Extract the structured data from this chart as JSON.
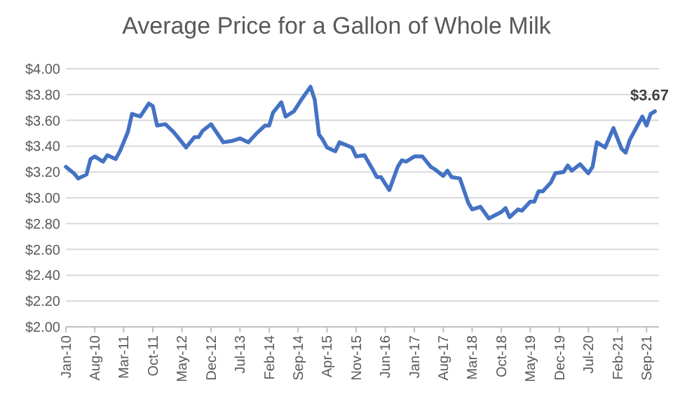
{
  "chart_data": {
    "type": "line",
    "title": "Average Price for a Gallon of Whole Milk",
    "x": [
      "2010-01",
      "2010-03",
      "2010-04",
      "2010-06",
      "2010-07",
      "2010-08",
      "2010-10",
      "2010-11",
      "2011-01",
      "2011-02",
      "2011-04",
      "2011-05",
      "2011-07",
      "2011-09",
      "2011-10",
      "2011-11",
      "2012-01",
      "2012-03",
      "2012-04",
      "2012-06",
      "2012-08",
      "2012-09",
      "2012-10",
      "2012-12",
      "2013-03",
      "2013-05",
      "2013-07",
      "2013-09",
      "2013-11",
      "2014-01",
      "2014-02",
      "2014-03",
      "2014-05",
      "2014-06",
      "2014-08",
      "2014-10",
      "2014-12",
      "2015-01",
      "2015-02",
      "2015-03",
      "2015-04",
      "2015-06",
      "2015-07",
      "2015-10",
      "2015-11",
      "2016-01",
      "2016-03",
      "2016-04",
      "2016-05",
      "2016-07",
      "2016-09",
      "2016-10",
      "2016-11",
      "2017-01",
      "2017-03",
      "2017-05",
      "2017-06",
      "2017-08",
      "2017-09",
      "2017-10",
      "2017-12",
      "2018-02",
      "2018-03",
      "2018-05",
      "2018-07",
      "2018-10",
      "2018-11",
      "2018-12",
      "2019-02",
      "2019-03",
      "2019-05",
      "2019-06",
      "2019-07",
      "2019-08",
      "2019-10",
      "2019-11",
      "2020-01",
      "2020-02",
      "2020-03",
      "2020-05",
      "2020-07",
      "2020-08",
      "2020-09",
      "2020-11",
      "2021-01",
      "2021-03",
      "2021-04",
      "2021-05",
      "2021-08",
      "2021-09",
      "2021-10",
      "2021-11"
    ],
    "series": [
      {
        "color": "#4472c4",
        "values": [
          3.24,
          3.19,
          3.15,
          3.18,
          3.3,
          3.32,
          3.28,
          3.33,
          3.3,
          3.36,
          3.51,
          3.65,
          3.63,
          3.73,
          3.71,
          3.56,
          3.57,
          3.51,
          3.47,
          3.39,
          3.47,
          3.47,
          3.52,
          3.57,
          3.43,
          3.44,
          3.46,
          3.43,
          3.5,
          3.56,
          3.56,
          3.66,
          3.74,
          3.63,
          3.67,
          3.77,
          3.86,
          3.76,
          3.49,
          3.45,
          3.39,
          3.36,
          3.43,
          3.39,
          3.32,
          3.33,
          3.22,
          3.16,
          3.16,
          3.06,
          3.24,
          3.29,
          3.28,
          3.32,
          3.32,
          3.24,
          3.22,
          3.17,
          3.21,
          3.16,
          3.15,
          2.96,
          2.91,
          2.93,
          2.84,
          2.89,
          2.92,
          2.85,
          2.91,
          2.9,
          2.97,
          2.97,
          3.05,
          3.05,
          3.12,
          3.19,
          3.2,
          3.25,
          3.21,
          3.26,
          3.19,
          3.24,
          3.43,
          3.39,
          3.54,
          3.38,
          3.35,
          3.45,
          3.63,
          3.56,
          3.65,
          3.67
        ]
      }
    ],
    "xlim": [
      "2010-01",
      "2021-12"
    ],
    "xticks": [
      {
        "value": "2010-01",
        "label": "Jan-10"
      },
      {
        "value": "2010-08",
        "label": "Aug-10"
      },
      {
        "value": "2011-03",
        "label": "Mar-11"
      },
      {
        "value": "2011-10",
        "label": "Oct-11"
      },
      {
        "value": "2012-05",
        "label": "May-12"
      },
      {
        "value": "2012-12",
        "label": "Dec-12"
      },
      {
        "value": "2013-07",
        "label": "Jul-13"
      },
      {
        "value": "2014-02",
        "label": "Feb-14"
      },
      {
        "value": "2014-09",
        "label": "Sep-14"
      },
      {
        "value": "2015-04",
        "label": "Apr-15"
      },
      {
        "value": "2015-11",
        "label": "Nov-15"
      },
      {
        "value": "2016-06",
        "label": "Jun-16"
      },
      {
        "value": "2017-01",
        "label": "Jan-17"
      },
      {
        "value": "2017-08",
        "label": "Aug-17"
      },
      {
        "value": "2018-03",
        "label": "Mar-18"
      },
      {
        "value": "2018-10",
        "label": "Oct-18"
      },
      {
        "value": "2019-05",
        "label": "May-19"
      },
      {
        "value": "2019-12",
        "label": "Dec-19"
      },
      {
        "value": "2020-07",
        "label": "Jul-20"
      },
      {
        "value": "2021-02",
        "label": "Feb-21"
      },
      {
        "value": "2021-09",
        "label": "Sep-21"
      }
    ],
    "ylim": [
      2,
      4
    ],
    "yticks": [
      {
        "value": 2,
        "label": "$2.00"
      },
      {
        "value": 2.2,
        "label": "$2.20"
      },
      {
        "value": 2.4,
        "label": "$2.40"
      },
      {
        "value": 2.6,
        "label": "$2.60"
      },
      {
        "value": 2.8,
        "label": "$2.80"
      },
      {
        "value": 3,
        "label": "$3.00"
      },
      {
        "value": 3.2,
        "label": "$3.20"
      },
      {
        "value": 3.4,
        "label": "$3.40"
      },
      {
        "value": 3.6,
        "label": "$3.60"
      },
      {
        "value": 3.8,
        "label": "$3.80"
      },
      {
        "value": 4,
        "label": "$4.00"
      }
    ],
    "grid": "y",
    "marker": "none",
    "line_style": "solid",
    "annotations": [
      {
        "text": "$3.67",
        "x": "2021-11",
        "y": 3.67
      }
    ]
  }
}
